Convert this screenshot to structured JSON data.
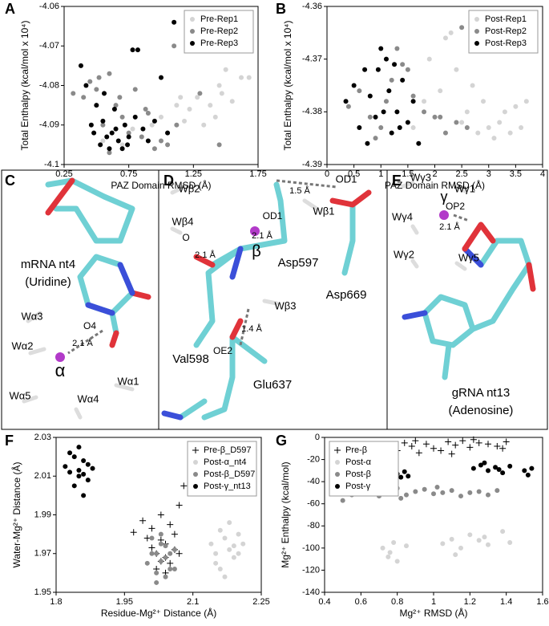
{
  "chart_data": [
    {
      "type": "scatter",
      "panel": "A",
      "xlabel": "PAZ Domain RMSD (Å)",
      "ylabel": "Total Enthalpy (kcal/mol x 10⁴)",
      "xlim": [
        0.25,
        1.75
      ],
      "xticks": [
        0.25,
        0.75,
        1.25,
        1.75
      ],
      "ylim": [
        -4.1,
        -4.06
      ],
      "yticks": [
        -4.1,
        -4.09,
        -4.08,
        -4.07,
        -4.06
      ],
      "legend": "upper-right",
      "series": [
        {
          "name": "Pre-Rep1",
          "color": "#d4d4d4",
          "marker": "circle",
          "x": [
            0.55,
            0.62,
            0.7,
            0.78,
            0.85,
            0.93,
            1.0,
            1.05,
            1.12,
            1.18,
            1.22,
            1.28,
            1.33,
            1.38,
            1.42,
            1.47,
            1.5,
            1.55,
            1.62,
            1.68,
            1.3,
            1.45,
            0.9,
            1.15
          ],
          "values": [
            -4.094,
            -4.092,
            -4.095,
            -4.091,
            -4.093,
            -4.09,
            -4.088,
            -4.092,
            -4.085,
            -4.089,
            -4.086,
            -4.083,
            -4.09,
            -4.085,
            -4.088,
            -4.082,
            -4.076,
            -4.084,
            -4.078,
            -4.078,
            -4.069,
            -4.08,
            -4.087,
            -4.083
          ]
        },
        {
          "name": "Pre-Rep2",
          "color": "#8a8a8a",
          "marker": "circle",
          "x": [
            0.32,
            0.4,
            0.45,
            0.5,
            0.55,
            0.6,
            0.65,
            0.7,
            0.75,
            0.8,
            0.85,
            0.9,
            0.95,
            1.0,
            1.05,
            1.1,
            1.2,
            1.3,
            1.45,
            0.52,
            0.68,
            0.88,
            1.12,
            0.6
          ],
          "values": [
            -4.082,
            -4.083,
            -4.079,
            -4.081,
            -4.09,
            -4.077,
            -4.085,
            -4.088,
            -4.092,
            -4.081,
            -4.093,
            -4.087,
            -4.096,
            -4.094,
            -4.095,
            -4.07,
            -4.068,
            -4.082,
            -4.095,
            -4.078,
            -4.083,
            -4.086,
            -4.09,
            -4.097
          ]
        },
        {
          "name": "Pre-Rep3",
          "color": "#000000",
          "marker": "circle",
          "x": [
            0.38,
            0.42,
            0.46,
            0.48,
            0.5,
            0.53,
            0.55,
            0.58,
            0.6,
            0.62,
            0.65,
            0.67,
            0.7,
            0.72,
            0.75,
            0.78,
            0.82,
            0.86,
            0.9,
            0.95,
            1.0,
            1.05,
            1.1,
            1.25,
            0.56,
            0.64,
            0.74,
            0.8
          ],
          "values": [
            -4.075,
            -4.08,
            -4.09,
            -4.092,
            -4.085,
            -4.095,
            -4.089,
            -4.093,
            -4.096,
            -4.092,
            -4.091,
            -4.094,
            -4.096,
            -4.09,
            -4.093,
            -4.071,
            -4.071,
            -4.091,
            -4.094,
            -4.089,
            -4.078,
            -4.092,
            -4.064,
            -4.066,
            -4.082,
            -4.086,
            -4.095,
            -4.088
          ]
        }
      ]
    },
    {
      "type": "scatter",
      "panel": "B",
      "xlabel": "PAZ Domain RMSD (Å)",
      "ylabel": "Total Enthalpy (kcal/mol x 10⁴)",
      "xlim": [
        0,
        4
      ],
      "xticks": [
        0,
        0.5,
        1,
        1.5,
        2,
        2.5,
        3,
        3.5,
        4
      ],
      "ylim": [
        -4.39,
        -4.36
      ],
      "yticks": [
        -4.39,
        -4.38,
        -4.37,
        -4.36
      ],
      "legend": "upper-right",
      "series": [
        {
          "name": "Post-Rep1",
          "color": "#d4d4d4",
          "marker": "circle",
          "x": [
            1.6,
            1.9,
            2.1,
            2.3,
            2.5,
            2.6,
            2.8,
            2.9,
            3.0,
            3.1,
            3.3,
            3.4,
            3.5,
            3.6,
            3.7,
            2.2,
            2.4,
            2.7,
            1.8,
            3.2
          ],
          "values": [
            -4.383,
            -4.37,
            -4.376,
            -4.365,
            -4.382,
            -4.38,
            -4.384,
            -4.378,
            -4.383,
            -4.385,
            -4.38,
            -4.384,
            -4.379,
            -4.383,
            -4.378,
            -4.366,
            -4.372,
            -4.375,
            -4.378,
            -4.382
          ]
        },
        {
          "name": "Post-Rep2",
          "color": "#8a8a8a",
          "marker": "circle",
          "x": [
            0.4,
            0.6,
            0.8,
            1.0,
            1.2,
            1.4,
            1.6,
            1.8,
            2.0,
            2.2,
            2.4,
            2.6,
            1.1,
            1.5,
            0.9,
            2.1,
            2.5,
            1.3
          ],
          "values": [
            -4.379,
            -4.376,
            -4.381,
            -4.383,
            -4.374,
            -4.371,
            -4.377,
            -4.38,
            -4.381,
            -4.384,
            -4.382,
            -4.383,
            -4.378,
            -4.372,
            -4.385,
            -4.381,
            -4.364,
            -4.368
          ]
        },
        {
          "name": "Post-Rep3",
          "color": "#000000",
          "marker": "circle",
          "x": [
            0.35,
            0.5,
            0.6,
            0.7,
            0.8,
            0.9,
            1.0,
            1.1,
            1.2,
            1.3,
            1.4,
            1.5,
            1.6,
            1.7,
            0.95,
            1.15,
            1.35,
            0.75,
            1.05,
            1.25
          ],
          "values": [
            -4.378,
            -4.375,
            -4.383,
            -4.372,
            -4.377,
            -4.381,
            -4.368,
            -4.37,
            -4.384,
            -4.38,
            -4.374,
            -4.382,
            -4.378,
            -4.386,
            -4.372,
            -4.376,
            -4.383,
            -4.386,
            -4.38,
            -4.371
          ]
        }
      ]
    },
    {
      "type": "scatter",
      "panel": "F",
      "xlabel": "Residue-Mg²⁺ Distance (Å)",
      "ylabel": "Water-Mg²⁺ Distance (Å)",
      "xlim": [
        1.8,
        2.25
      ],
      "xticks": [
        1.8,
        1.95,
        2.1,
        2.25
      ],
      "ylim": [
        1.95,
        2.03
      ],
      "yticks": [
        1.95,
        1.97,
        1.99,
        2.01,
        2.03
      ],
      "legend": "upper-right",
      "series": [
        {
          "name": "Pre-β_D597",
          "color": "#000000",
          "marker": "plus",
          "x": [
            1.97,
            1.99,
            2.0,
            2.01,
            2.02,
            2.03,
            2.04,
            2.05,
            2.06,
            2.07,
            2.08,
            2.02,
            2.03,
            2.04,
            2.05,
            2.06,
            2.01,
            2.03,
            2.07,
            2.04
          ],
          "values": [
            1.981,
            1.987,
            1.978,
            1.983,
            1.97,
            1.99,
            1.975,
            1.965,
            1.972,
            1.995,
            2.005,
            1.962,
            1.966,
            1.968,
            1.985,
            1.98,
            1.973,
            1.977,
            1.97,
            1.96
          ]
        },
        {
          "name": "Post-α_nt4",
          "color": "#d4d4d4",
          "marker": "circle",
          "x": [
            2.14,
            2.15,
            2.16,
            2.17,
            2.18,
            2.19,
            2.2,
            2.21,
            2.16,
            2.18,
            2.17,
            2.19,
            2.15,
            2.2
          ],
          "values": [
            1.975,
            1.97,
            1.982,
            1.978,
            1.972,
            1.968,
            1.98,
            1.975,
            1.962,
            1.986,
            1.958,
            1.974,
            1.965,
            1.97
          ]
        },
        {
          "name": "Post-β_D597",
          "color": "#8a8a8a",
          "marker": "circle",
          "x": [
            2.0,
            2.01,
            2.02,
            2.03,
            2.04,
            2.05,
            2.06,
            2.02,
            2.03,
            2.04,
            2.01,
            2.05,
            2.03,
            2.04,
            2.02,
            2.06
          ],
          "values": [
            1.965,
            1.97,
            1.96,
            1.975,
            1.968,
            1.962,
            1.972,
            1.955,
            1.98,
            1.958,
            1.978,
            1.97,
            1.966,
            1.974,
            1.97,
            1.962
          ]
        },
        {
          "name": "Post-γ_nt13",
          "color": "#000000",
          "marker": "circle",
          "x": [
            1.82,
            1.83,
            1.84,
            1.85,
            1.86,
            1.87,
            1.88,
            1.84,
            1.85,
            1.86,
            1.83,
            1.87,
            1.85,
            1.86
          ],
          "values": [
            2.015,
            2.012,
            2.02,
            2.01,
            2.018,
            2.008,
            2.014,
            2.005,
            2.025,
            2.0,
            2.022,
            2.016,
            2.013,
            2.011
          ]
        }
      ]
    },
    {
      "type": "scatter",
      "panel": "G",
      "xlabel": "Mg²⁺ RMSD (Å)",
      "ylabel": "Mg²⁺ Enthalpy (kcal/mol)",
      "xlim": [
        0.4,
        1.6
      ],
      "xticks": [
        0.4,
        0.6,
        0.8,
        1,
        1.2,
        1.4,
        1.6
      ],
      "ylim": [
        -140,
        0
      ],
      "yticks": [
        -140,
        -120,
        -100,
        -80,
        -60,
        -40,
        -20,
        0
      ],
      "legend": "upper-left",
      "series": [
        {
          "name": "Pre-β",
          "color": "#000000",
          "marker": "plus",
          "x": [
            0.76,
            0.8,
            0.84,
            0.88,
            0.92,
            0.96,
            1.0,
            1.04,
            1.08,
            1.12,
            1.16,
            1.2,
            1.25,
            1.3,
            1.35,
            1.4,
            0.9,
            1.1,
            1.22,
            1.38
          ],
          "values": [
            -10,
            -12,
            -5,
            -8,
            -14,
            -6,
            -10,
            -12,
            -4,
            -7,
            -3,
            -9,
            -5,
            -6,
            -8,
            -4,
            -3,
            -15,
            -2,
            -10
          ]
        },
        {
          "name": "Post-α",
          "color": "#d4d4d4",
          "marker": "circle",
          "x": [
            0.72,
            0.75,
            0.78,
            0.8,
            0.85,
            1.05,
            1.1,
            1.15,
            1.2,
            1.25,
            1.3,
            1.38,
            1.42,
            0.76,
            1.12,
            1.28
          ],
          "values": [
            -100,
            -108,
            -95,
            -112,
            -98,
            -96,
            -92,
            -100,
            -88,
            -93,
            -97,
            -85,
            -95,
            -104,
            -106,
            -90
          ]
        },
        {
          "name": "Post-β",
          "color": "#8a8a8a",
          "marker": "circle",
          "x": [
            0.5,
            0.55,
            0.6,
            0.65,
            0.7,
            0.75,
            0.8,
            0.85,
            0.9,
            0.95,
            1.0,
            1.05,
            1.1,
            1.15,
            1.2,
            1.25,
            1.3,
            1.35,
            0.82,
            1.02
          ],
          "values": [
            -57,
            -52,
            -50,
            -48,
            -53,
            -50,
            -46,
            -52,
            -49,
            -47,
            -51,
            -50,
            -48,
            -53,
            -50,
            -49,
            -52,
            -48,
            -55,
            -45
          ]
        },
        {
          "name": "Post-γ",
          "color": "#000000",
          "marker": "circle",
          "x": [
            0.8,
            0.82,
            0.84,
            0.86,
            1.22,
            1.26,
            1.3,
            1.34,
            1.38,
            1.42,
            1.5,
            1.52,
            1.54,
            1.28,
            1.36
          ],
          "values": [
            -33,
            -36,
            -31,
            -35,
            -28,
            -25,
            -30,
            -27,
            -32,
            -26,
            -30,
            -34,
            -28,
            -23,
            -29
          ]
        }
      ]
    }
  ],
  "structures": [
    {
      "panel": "C",
      "labels": [
        "mRNA nt4",
        "(Uridine)",
        "Wα3",
        "O4",
        "2.1 Å",
        "Wα2",
        "α",
        "Wα1",
        "Wα5",
        "Wα4"
      ]
    },
    {
      "panel": "D",
      "labels": [
        "Wβ2",
        "1.5 Å",
        "OD1",
        "Wβ4",
        "OD1",
        "Wβ1",
        "O",
        "2.1 Å",
        "β",
        "2.1 Å",
        "Asp597",
        "Asp669",
        "Wβ3",
        "1.4 Å",
        "Val598",
        "OE2",
        "Glu637"
      ]
    },
    {
      "panel": "E",
      "labels": [
        "Wγ3",
        "Wγ1",
        "γ",
        "Wγ4",
        "OP2",
        "2.1 Å",
        "Wγ2",
        "Wγ5",
        "gRNA nt13",
        "(Adenosine)"
      ]
    }
  ]
}
